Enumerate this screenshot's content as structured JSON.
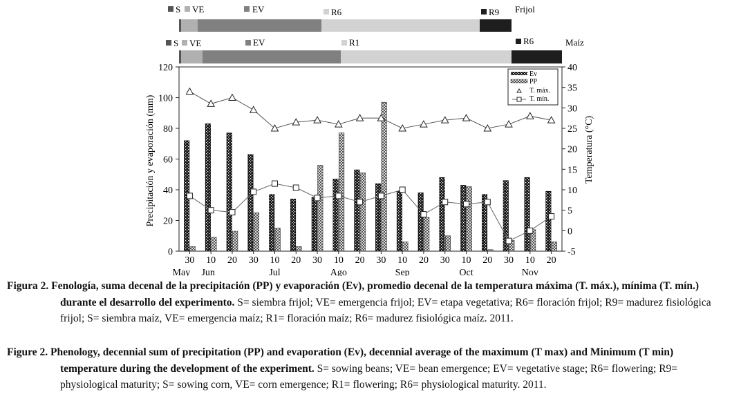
{
  "phenology": {
    "beans": {
      "crop_label": "Frijol",
      "stages": [
        {
          "label": "S",
          "color": "#555555"
        },
        {
          "label": "VE",
          "color": "#b0b0b0"
        },
        {
          "label": "EV",
          "color": "#808080"
        },
        {
          "label": "R6",
          "color": "#d2d2d2"
        },
        {
          "label": "R9",
          "color": "#1e1e1e"
        }
      ]
    },
    "corn": {
      "crop_label": "Maíz",
      "stages": [
        {
          "label": "S",
          "color": "#555555"
        },
        {
          "label": "VE",
          "color": "#b0b0b0"
        },
        {
          "label": "EV",
          "color": "#808080"
        },
        {
          "label": "R1",
          "color": "#d2d2d2"
        },
        {
          "label": "R6",
          "color": "#1e1e1e"
        }
      ]
    }
  },
  "chart_data": {
    "type": "bar",
    "x_ticks": [
      "30",
      "10",
      "20",
      "30",
      "10",
      "20",
      "30",
      "10",
      "20",
      "30",
      "10",
      "20",
      "30",
      "10",
      "20",
      "30",
      "10",
      "20"
    ],
    "months": [
      "May",
      "Jun",
      "Jul",
      "Ago",
      "Sep",
      "Oct",
      "Nov"
    ],
    "ylabel_left": "Precipitación y evaporación (mm)",
    "ylabel_right": "Temperatura (°C)",
    "ylim_left": [
      0,
      120
    ],
    "yticks_left": [
      "0",
      "20",
      "40",
      "60",
      "80",
      "100",
      "120"
    ],
    "ylim_right": [
      -5,
      40
    ],
    "yticks_right": [
      "-5",
      "0",
      "5",
      "10",
      "15",
      "20",
      "25",
      "30",
      "35",
      "40"
    ],
    "series": [
      {
        "name": "Ev",
        "kind": "bar",
        "values": [
          72,
          83,
          77,
          63,
          37,
          34,
          35,
          47,
          53,
          44,
          39,
          38,
          48,
          43,
          37,
          46,
          48,
          39
        ]
      },
      {
        "name": "PP",
        "kind": "bar",
        "values": [
          3,
          9,
          13,
          25,
          15,
          3,
          56,
          77,
          51,
          97,
          6,
          22,
          10,
          42,
          1,
          7,
          14,
          6
        ]
      },
      {
        "name": "T. máx.",
        "kind": "line",
        "values": [
          34,
          31,
          32.5,
          29.5,
          25,
          26.5,
          27,
          26,
          27.5,
          27.5,
          25,
          26,
          27,
          27.5,
          25,
          26,
          28,
          27
        ]
      },
      {
        "name": "T. mín.",
        "kind": "line",
        "values": [
          8.5,
          5,
          4.5,
          9.5,
          11.5,
          10.5,
          8,
          8.5,
          7,
          8.5,
          10,
          4,
          7,
          6.5,
          7,
          -2.5,
          0,
          3.5
        ]
      }
    ],
    "legend": [
      "Ev",
      "PP",
      "T. máx.",
      "T. mín."
    ],
    "legend_position": "top-right"
  },
  "captions": {
    "es": {
      "label": "Figura 2.",
      "bold": "Fenología, suma decenal de la precipitación (PP) y evaporación (Ev), promedio decenal de la temperatura máxima (T. máx.), mínima (T. mín.) durante el desarrollo del experimento.",
      "rest": "S= siembra frijol; VE= emergencia frijol; EV= etapa vegetativa; R6= floración frijol; R9= madurez fisiológica frijol; S= siembra maíz, VE= emergencia maíz; R1= floración maíz; R6= madurez fisiológica maíz. 2011."
    },
    "en": {
      "label": "Figure 2.",
      "bold": "Phenology, decennial sum of precipitation (PP) and evaporation (Ev), decennial average of the maximum (T max) and Minimum (T min) temperature during the development of the experiment.",
      "rest": "S= sowing beans; VE= bean emergence; EV= vegetative stage; R6= flowering; R9= physiological maturity; S= sowing corn, VE= corn emergence; R1= flowering; R6= physiological maturity. 2011."
    }
  }
}
